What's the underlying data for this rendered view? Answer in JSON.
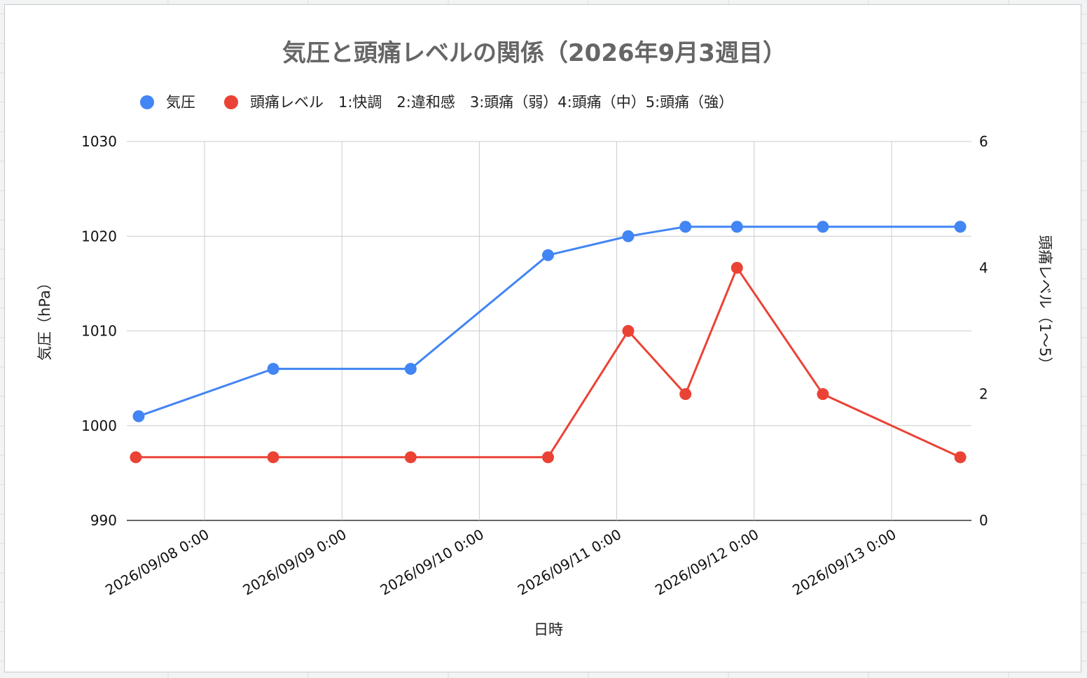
{
  "chart_data": {
    "type": "line",
    "title": "気圧と頭痛レベルの関係（2026年9月3週目）",
    "xlabel": "日時",
    "ylabel_left": "気圧（hPa）",
    "ylabel_right": "頭痛レベル（1〜5）",
    "ylim_left": [
      990,
      1030
    ],
    "yticks_left": [
      990,
      1000,
      1010,
      1020,
      1030
    ],
    "ylim_right": [
      0,
      6
    ],
    "yticks_right": [
      0,
      2,
      4,
      6
    ],
    "x_ticks": [
      "2026/09/08 0:00",
      "2026/09/09 0:00",
      "2026/09/10 0:00",
      "2026/09/11 0:00",
      "2026/09/12 0:00",
      "2026/09/13 0:00"
    ],
    "grid": true,
    "legend_position": "top",
    "series": [
      {
        "name": "気圧",
        "axis": "left",
        "color": "#4285f4",
        "points": [
          {
            "x": "2026/09/07 12:30",
            "y": 1001
          },
          {
            "x": "2026/09/08 12:00",
            "y": 1006
          },
          {
            "x": "2026/09/09 12:00",
            "y": 1006
          },
          {
            "x": "2026/09/10 12:00",
            "y": 1018
          },
          {
            "x": "2026/09/11 02:00",
            "y": 1020
          },
          {
            "x": "2026/09/11 12:00",
            "y": 1021
          },
          {
            "x": "2026/09/11 21:00",
            "y": 1021
          },
          {
            "x": "2026/09/12 12:00",
            "y": 1021
          },
          {
            "x": "2026/09/13 12:00",
            "y": 1021
          }
        ]
      },
      {
        "name": "頭痛レベル　1:快調　2:違和感　3:頭痛（弱）4:頭痛（中）5:頭痛（強）",
        "axis": "right",
        "color": "#ea4335",
        "points": [
          {
            "x": "2026/09/07 12:00",
            "y": 1
          },
          {
            "x": "2026/09/08 12:00",
            "y": 1
          },
          {
            "x": "2026/09/09 12:00",
            "y": 1
          },
          {
            "x": "2026/09/10 12:00",
            "y": 1
          },
          {
            "x": "2026/09/11 02:00",
            "y": 3
          },
          {
            "x": "2026/09/11 12:00",
            "y": 2
          },
          {
            "x": "2026/09/11 21:00",
            "y": 4
          },
          {
            "x": "2026/09/12 12:00",
            "y": 2
          },
          {
            "x": "2026/09/13 12:00",
            "y": 1
          }
        ]
      }
    ]
  }
}
